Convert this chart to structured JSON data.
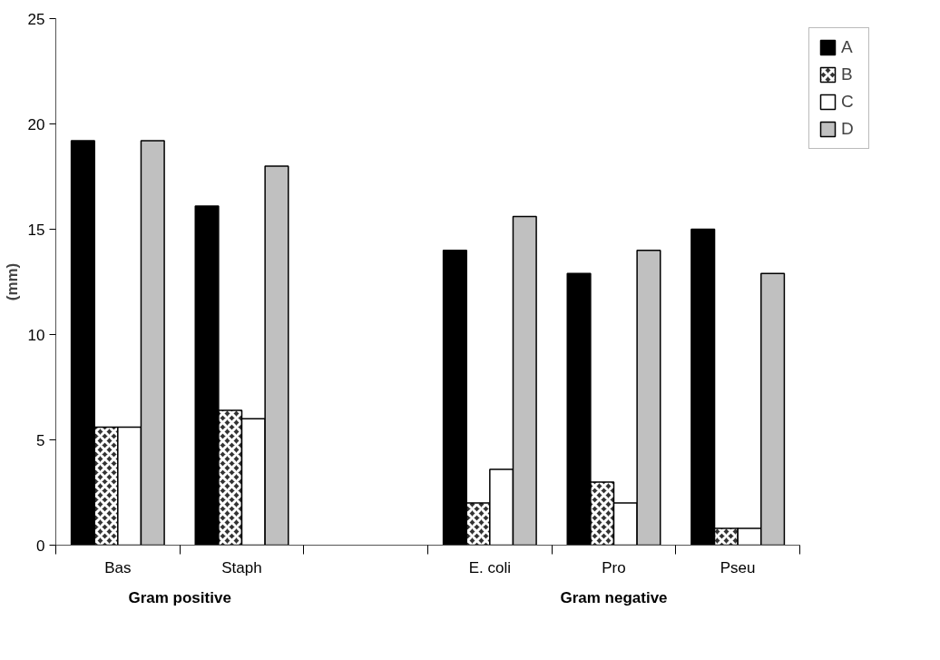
{
  "chart_data": {
    "type": "bar",
    "ylabel": "(mm)",
    "categories": [
      "Bas",
      "Staph",
      null,
      "E. coli",
      "Pro",
      "Pseu"
    ],
    "series": [
      {
        "name": "A",
        "color": "#000000",
        "values": [
          19.2,
          16.1,
          null,
          14.0,
          12.9,
          15
        ]
      },
      {
        "name": "B",
        "color": "#333333",
        "values": [
          5.6,
          6.4,
          null,
          2.0,
          3.0,
          0.8
        ]
      },
      {
        "name": "C",
        "color": "#ffffff",
        "values": [
          5.6,
          6.0,
          null,
          3.6,
          2.0,
          0.8
        ]
      },
      {
        "name": "D",
        "color": "#c0c0c0",
        "values": [
          19.2,
          18.0,
          null,
          15.6,
          14.0,
          12.9
        ]
      }
    ],
    "ylim": [
      0,
      25
    ],
    "yticks": [
      0,
      5,
      10,
      15,
      20,
      25
    ],
    "grid": false,
    "legend": "right",
    "annotations": [
      "Gram positive",
      "Gram negative"
    ]
  }
}
